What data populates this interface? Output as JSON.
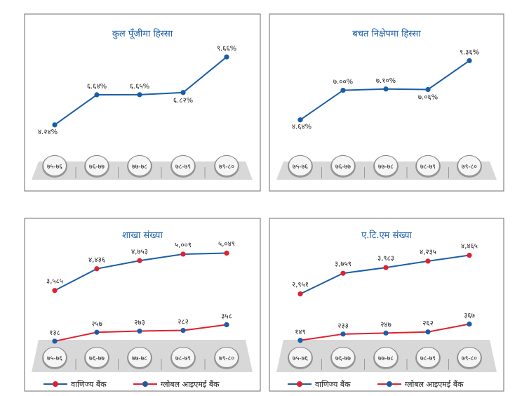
{
  "colors": {
    "blue": "#1a5ea8",
    "red": "#e0202e",
    "frame": "#6d6d6d",
    "title": "#1a5ea8",
    "floor": "#d8d8d8"
  },
  "legend": {
    "commercial": "वाणिज्य बैंक",
    "global": "ग्लोबल आइएमई बैंक"
  },
  "chart_data": [
    {
      "type": "line",
      "title": "कुल पूँजीमा हिस्सा",
      "categories": [
        "७५-७६",
        "७६-७७",
        "७७-७८",
        "७८-७९",
        "७९-८०"
      ],
      "series": [
        {
          "values": [
            4.24,
            6.64,
            6.65,
            6.82,
            9.66
          ],
          "labels": [
            "४.२४%",
            "६.६४%",
            "६.६५%",
            "६.८२%",
            "९.६६%"
          ]
        }
      ]
    },
    {
      "type": "line",
      "title": "बचत निक्षेपमा हिस्सा",
      "categories": [
        "७५-७६",
        "७६-७७",
        "७७-७८",
        "७८-७९",
        "७९-८०"
      ],
      "series": [
        {
          "values": [
            4.64,
            7.0,
            7.1,
            7.06,
            9.36
          ],
          "labels": [
            "४.६४%",
            "७.००%",
            "७.१०%",
            "७.०६%",
            "९.३६%"
          ]
        }
      ]
    },
    {
      "type": "line",
      "title": "शाखा संख्या",
      "categories": [
        "७५-७६",
        "७६-७७",
        "७७-७८",
        "७८-७९",
        "७९-८०"
      ],
      "series": [
        {
          "name": "वाणिज्य बैंक",
          "values": [
            3585,
            4436,
            4753,
            5009,
            5049
          ],
          "labels": [
            "३,५८५",
            "४,४३६",
            "४,७५३",
            "५,००९",
            "५,०४९"
          ]
        },
        {
          "name": "ग्लोबल आइएमई बैंक",
          "values": [
            138,
            257,
            273,
            282,
            358
          ],
          "labels": [
            "१३८",
            "२५७",
            "२७३",
            "२८२",
            "३५८"
          ]
        }
      ]
    },
    {
      "type": "line",
      "title": "ए.टि.एम संख्या",
      "categories": [
        "७५-७६",
        "७६-७७",
        "७७-७८",
        "७८-७९",
        "७९-८०"
      ],
      "series": [
        {
          "name": "वाणिज्य बैंक",
          "values": [
            2951,
            3759,
            3983,
            4235,
            4465
          ],
          "labels": [
            "२,९५१",
            "३,७५९",
            "३,९८३",
            "४,२३५",
            "४,४६५"
          ]
        },
        {
          "name": "ग्लोबल आइएमई बैंक",
          "values": [
            149,
            233,
            247,
            262,
            367
          ],
          "labels": [
            "१४९",
            "२३३",
            "२४७",
            "२६२",
            "३६७"
          ]
        }
      ]
    }
  ]
}
